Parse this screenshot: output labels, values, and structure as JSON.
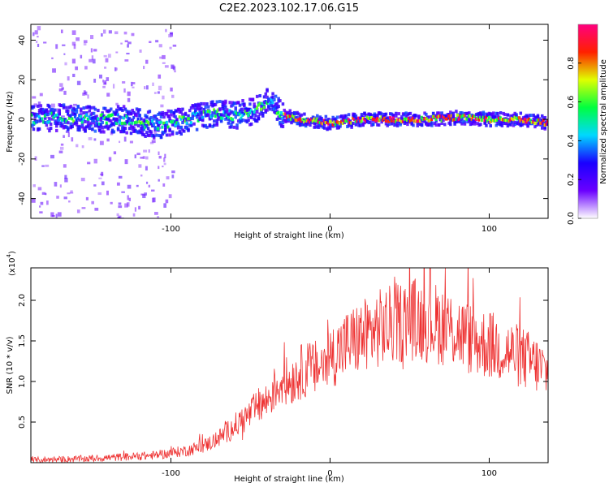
{
  "figure": {
    "title": "C2E2.2023.102.17.06.G15"
  },
  "chart_data": [
    {
      "type": "heatmap",
      "xlabel": "Height of straight line (km)",
      "ylabel": "Frequency (Hz)",
      "xlim": [
        -188,
        137
      ],
      "ylim": [
        -50,
        48
      ],
      "xticks": [
        -100,
        0,
        100
      ],
      "yticks": [
        -40,
        -20,
        0,
        20,
        40
      ],
      "ridge": {
        "description": "frequency of the dominant spectral peak vs height",
        "x": [
          -188,
          -170,
          -150,
          -130,
          -110,
          -100,
          -90,
          -80,
          -70,
          -60,
          -50,
          -45,
          -40,
          -35,
          -30,
          -20,
          -10,
          0,
          10,
          20,
          40,
          60,
          80,
          100,
          120,
          137
        ],
        "y": [
          0,
          1,
          0,
          0,
          -3,
          -2,
          0,
          2,
          3,
          2,
          4,
          6,
          9,
          6,
          2,
          0,
          -1,
          -2,
          -1,
          0,
          0,
          0,
          1,
          0,
          0,
          -2
        ]
      },
      "colorbar": {
        "label": "Normalized spectral amplitude",
        "range": [
          0,
          1
        ],
        "ticks": [
          0.0,
          0.2,
          0.4,
          0.6,
          0.8
        ],
        "tick_labels": [
          "0.0",
          "0.2",
          "0.4",
          "0.6",
          "0.8"
        ],
        "colormap": [
          "#ffffff",
          "#6a00ff",
          "#1a00ff",
          "#00d8ff",
          "#00ff40",
          "#e0ff00",
          "#ff2000",
          "#ff0080"
        ]
      },
      "grid": false
    },
    {
      "type": "line",
      "xlabel": "Height of straight line (km)",
      "ylabel": "SNR (10 * v/v)",
      "multiplier_label": "(x10",
      "multiplier_exp": "4",
      "multiplier_close": ")",
      "xlim": [
        -188,
        137
      ],
      "ylim": [
        0,
        2.4
      ],
      "xticks": [
        -100,
        0,
        100
      ],
      "yticks": [
        0.5,
        1.0,
        1.5,
        2.0
      ],
      "series": [
        {
          "color": "#ee3333",
          "x": [
            -188,
            -170,
            -150,
            -130,
            -110,
            -100,
            -90,
            -80,
            -70,
            -60,
            -50,
            -45,
            -40,
            -35,
            -30,
            -25,
            -20,
            -15,
            -10,
            -5,
            0,
            10,
            20,
            30,
            40,
            50,
            60,
            70,
            80,
            90,
            100,
            110,
            120,
            130,
            137
          ],
          "y": [
            0.03,
            0.04,
            0.05,
            0.07,
            0.09,
            0.12,
            0.15,
            0.2,
            0.3,
            0.45,
            0.6,
            0.7,
            0.75,
            0.9,
            1.0,
            1.0,
            1.1,
            1.15,
            1.15,
            1.2,
            1.3,
            1.45,
            1.55,
            1.65,
            1.7,
            1.78,
            1.75,
            1.7,
            1.62,
            1.5,
            1.45,
            1.38,
            1.3,
            1.2,
            1.1
          ]
        }
      ],
      "grid": false
    }
  ]
}
